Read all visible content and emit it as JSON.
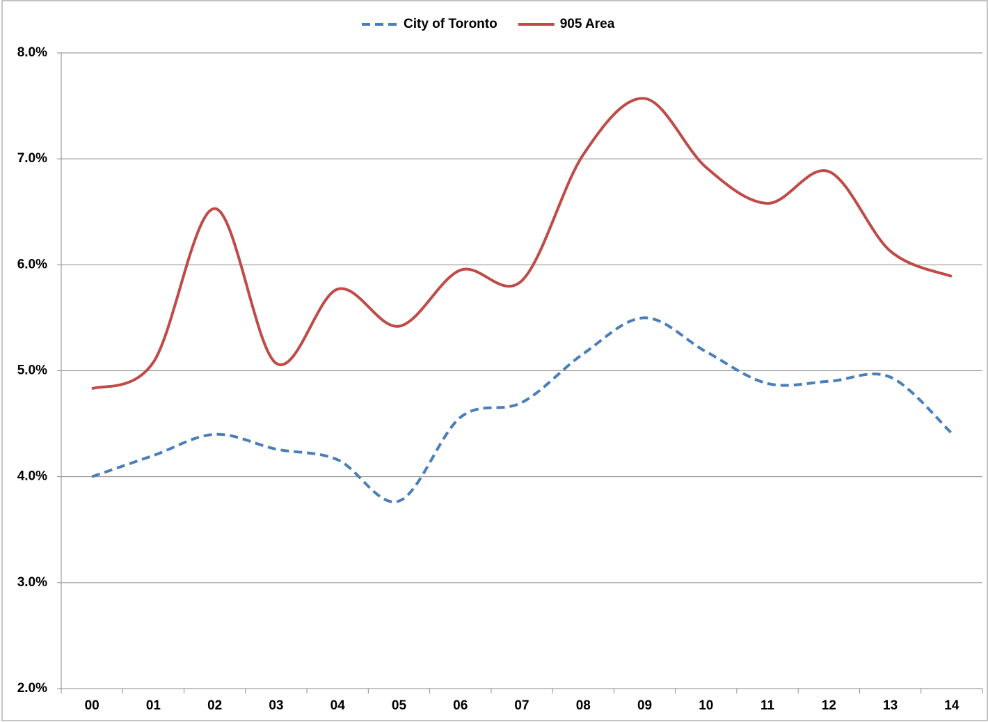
{
  "chart_data": {
    "type": "line",
    "smooth": true,
    "legend": "top",
    "categories": [
      "00",
      "01",
      "02",
      "03",
      "04",
      "05",
      "06",
      "07",
      "08",
      "09",
      "10",
      "11",
      "12",
      "13",
      "14"
    ],
    "series": [
      {
        "name": "City of Toronto",
        "color": "#4a7ebb",
        "dashed": true,
        "values": [
          4.0,
          4.2,
          4.4,
          4.26,
          4.16,
          3.77,
          4.56,
          4.7,
          5.16,
          5.5,
          5.18,
          4.88,
          4.9,
          4.94,
          4.41
        ]
      },
      {
        "name": "905 Area",
        "color": "#be4b48",
        "dashed": false,
        "values": [
          4.83,
          5.08,
          6.53,
          5.07,
          5.77,
          5.42,
          5.95,
          5.85,
          7.04,
          7.57,
          6.92,
          6.58,
          6.88,
          6.13,
          5.89
        ]
      }
    ],
    "ylim": [
      2,
      8
    ],
    "yticks": [
      {
        "value": 2,
        "label": "2.0%"
      },
      {
        "value": 3,
        "label": "3.0%"
      },
      {
        "value": 4,
        "label": "4.0%"
      },
      {
        "value": 5,
        "label": "5.0%"
      },
      {
        "value": 6,
        "label": "6.0%"
      },
      {
        "value": 7,
        "label": "7.0%"
      },
      {
        "value": 8,
        "label": "8.0%"
      }
    ],
    "grid": true
  }
}
